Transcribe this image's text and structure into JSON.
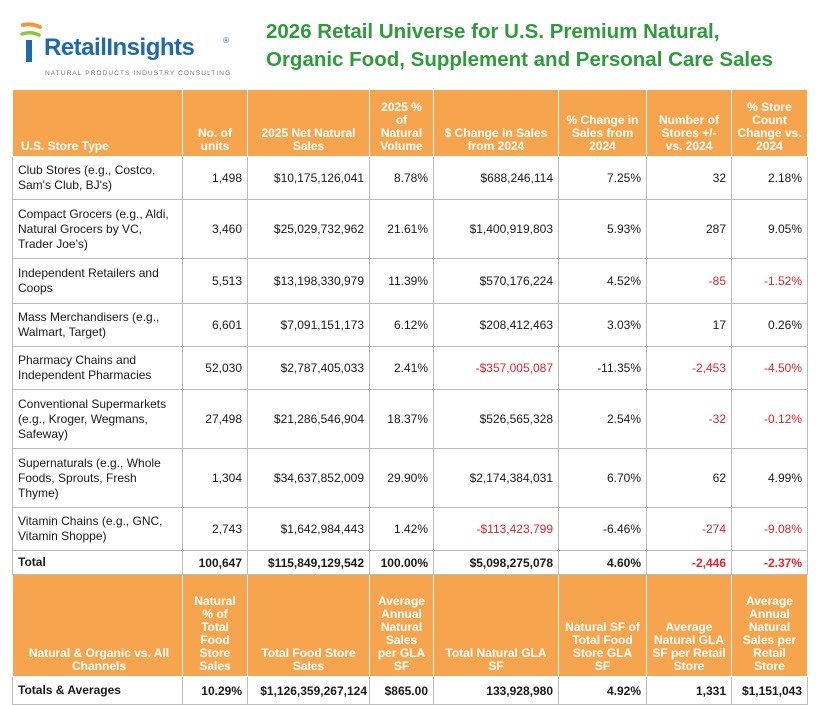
{
  "logo": {
    "name": "RetailInsights",
    "mark": "®",
    "tagline": "NATURAL PRODUCTS INDUSTRY CONSULTING"
  },
  "title": {
    "line1": "2026 Retail Universe for U.S. Premium Natural,",
    "line2": "Organic Food, Supplement and Personal Care Sales"
  },
  "colors": {
    "accent": "#f6a54e",
    "title": "#2e9c3b",
    "brand": "#1f6aa8",
    "negative": "#e8232a"
  },
  "headers": [
    "U.S. Store Type",
    "No. of units",
    "2025 Net Natural Sales",
    "2025 % of Natural Volume",
    "$ Change in Sales from 2024",
    "% Change in Sales from 2024",
    "Number of Stores +/- vs. 2024",
    "% Store Count Change vs. 2024"
  ],
  "rows": [
    {
      "type": "Club Stores (e.g., Costco, Sam's Club, BJ's)",
      "units": "1,498",
      "sales": "$10,175,126,041",
      "pct_volume": "8.78%",
      "dollar_change": "$688,246,114",
      "pct_change": "7.25%",
      "store_change": "32",
      "store_pct_change": "2.18%"
    },
    {
      "type": "Compact Grocers (e.g., Aldi, Natural Grocers by VC, Trader Joe's)",
      "units": "3,460",
      "sales": "$25,029,732,962",
      "pct_volume": "21.61%",
      "dollar_change": "$1,400,919,803",
      "pct_change": "5.93%",
      "store_change": "287",
      "store_pct_change": "9.05%"
    },
    {
      "type": "Independent Retailers and Coops",
      "units": "5,513",
      "sales": "$13,198,330,979",
      "pct_volume": "11.39%",
      "dollar_change": "$570,176,224",
      "pct_change": "4.52%",
      "store_change": "-85",
      "store_pct_change": "-1.52%"
    },
    {
      "type": "Mass Merchandisers (e.g., Walmart, Target)",
      "units": "6,601",
      "sales": "$7,091,151,173",
      "pct_volume": "6.12%",
      "dollar_change": "$208,412,463",
      "pct_change": "3.03%",
      "store_change": "17",
      "store_pct_change": "0.26%"
    },
    {
      "type": "Pharmacy Chains and Independent Pharmacies",
      "units": "52,030",
      "sales": "$2,787,405,033",
      "pct_volume": "2.41%",
      "dollar_change": "-$357,005,087",
      "pct_change": "-11.35%",
      "store_change": "-2,453",
      "store_pct_change": "-4.50%"
    },
    {
      "type": "Conventional Supermarkets (e.g., Kroger, Wegmans, Safeway)",
      "units": "27,498",
      "sales": "$21,286,546,904",
      "pct_volume": "18.37%",
      "dollar_change": "$526,565,328",
      "pct_change": "2.54%",
      "store_change": "-32",
      "store_pct_change": "-0.12%"
    },
    {
      "type": "Supernaturals (e.g., Whole Foods, Sprouts, Fresh Thyme)",
      "units": "1,304",
      "sales": "$34,637,852,009",
      "pct_volume": "29.90%",
      "dollar_change": "$2,174,384,031",
      "pct_change": "6.70%",
      "store_change": "62",
      "store_pct_change": "4.99%"
    },
    {
      "type": "Vitamin Chains (e.g., GNC, Vitamin Shoppe)",
      "units": "2,743",
      "sales": "$1,642,984,443",
      "pct_volume": "1.42%",
      "dollar_change": "-$113,423,799",
      "pct_change": "-6.46%",
      "store_change": "-274",
      "store_pct_change": "-9.08%"
    }
  ],
  "total": {
    "label": "Total",
    "units": "100,647",
    "sales": "$115,849,129,542",
    "pct_volume": "100.00%",
    "dollar_change": "$5,098,275,078",
    "pct_change": "4.60%",
    "store_change": "-2,446",
    "store_pct_change": "-2.37%"
  },
  "headers2": [
    "Natural & Organic vs. All Channels",
    "Natural % of Total Food Store Sales",
    "Total Food Store Sales",
    "Average Annual Natural Sales per GLA SF",
    "Total Natural GLA SF",
    "Natural SF of Total Food Store GLA SF",
    "Average Natural GLA SF per Retail Store",
    "Average Annual Natural Sales per Retail Store"
  ],
  "totals_averages": {
    "label": "Totals & Averages",
    "natural_pct": "10.29%",
    "food_sales": "$1,126,359,267,124",
    "sales_per_sf": "$865.00",
    "natural_gla": "133,928,980",
    "natural_sf_pct": "4.92%",
    "avg_gla": "1,331",
    "avg_sales": "$1,151,043"
  }
}
